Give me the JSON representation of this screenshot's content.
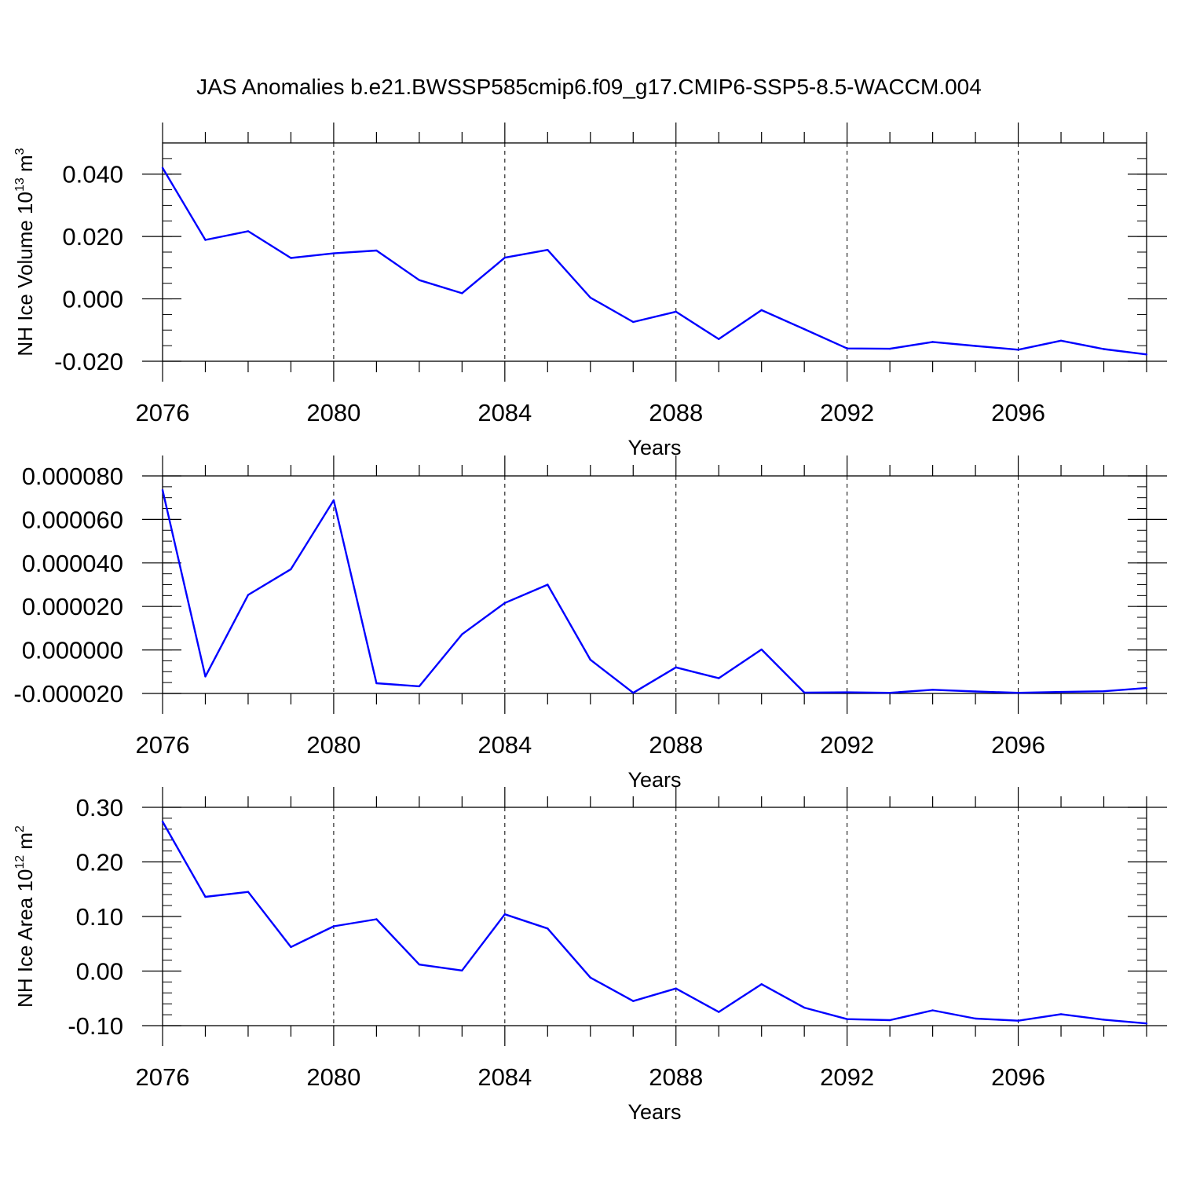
{
  "figure": {
    "title": "JAS Anomalies b.e21.BWSSP585cmip6.f09_g17.CMIP6-SSP5-8.5-WACCM.004"
  },
  "chart_data": [
    {
      "type": "line",
      "xlabel": "Years",
      "ylabel": {
        "text": "NH Ice Volume 10",
        "sup": "13",
        "unit": " m",
        "unit_sup": "3"
      },
      "xlim": [
        2076,
        2099
      ],
      "ylim": [
        -0.02,
        0.05
      ],
      "x_ticks": [
        "2076",
        "2080",
        "2084",
        "2088",
        "2092",
        "2096"
      ],
      "x_tick_values": [
        2076,
        2080,
        2084,
        2088,
        2092,
        2096
      ],
      "y_ticks": [
        "0.040",
        "0.020",
        "0.000",
        "-0.020"
      ],
      "y_tick_values": [
        0.04,
        0.02,
        0.0,
        -0.02
      ],
      "y_minor_step": 0.005,
      "color": "#0000ff",
      "grid": "x-dashed",
      "x": [
        2076,
        2077,
        2078,
        2079,
        2080,
        2081,
        2082,
        2083,
        2084,
        2085,
        2086,
        2087,
        2088,
        2089,
        2090,
        2091,
        2092,
        2093,
        2094,
        2095,
        2096,
        2097,
        2098,
        2099
      ],
      "values": [
        0.042,
        0.0189,
        0.0217,
        0.0131,
        0.0146,
        0.0155,
        0.006,
        0.0018,
        0.0132,
        0.0157,
        0.0004,
        -0.0074,
        -0.0041,
        -0.0129,
        -0.0036,
        -0.0097,
        -0.0159,
        -0.016,
        -0.0138,
        -0.0151,
        -0.0163,
        -0.0134,
        -0.0161,
        -0.0178
      ]
    },
    {
      "type": "line",
      "xlabel": "Years",
      "xlim": [
        2076,
        2099
      ],
      "ylim": [
        -2e-05,
        8e-05
      ],
      "x_ticks": [
        "2076",
        "2080",
        "2084",
        "2088",
        "2092",
        "2096"
      ],
      "x_tick_values": [
        2076,
        2080,
        2084,
        2088,
        2092,
        2096
      ],
      "y_ticks": [
        "0.000080",
        "0.000060",
        "0.000040",
        "0.000020",
        "0.000000",
        "-0.000020"
      ],
      "y_tick_values": [
        8e-05,
        6e-05,
        4e-05,
        2e-05,
        0.0,
        -2e-05
      ],
      "y_minor_step": 5e-06,
      "color": "#0000ff",
      "grid": "x-dashed",
      "x": [
        2076,
        2077,
        2078,
        2079,
        2080,
        2081,
        2082,
        2083,
        2084,
        2085,
        2086,
        2087,
        2088,
        2089,
        2090,
        2091,
        2092,
        2093,
        2094,
        2095,
        2096,
        2097,
        2098,
        2099
      ],
      "values": [
        7.35e-05,
        -1.22e-05,
        2.53e-05,
        3.71e-05,
        6.88e-05,
        -1.53e-05,
        -1.67e-05,
        7.2e-06,
        2.16e-05,
        3e-05,
        -4.5e-06,
        -1.97e-05,
        -8e-06,
        -1.3e-05,
        2e-07,
        -1.96e-05,
        -1.95e-05,
        -1.97e-05,
        -1.83e-05,
        -1.91e-05,
        -1.97e-05,
        -1.93e-05,
        -1.9e-05,
        -1.75e-05
      ]
    },
    {
      "type": "line",
      "xlabel": "Years",
      "ylabel": {
        "text": "NH Ice Area 10",
        "sup": "12",
        "unit": " m",
        "unit_sup": "2"
      },
      "xlim": [
        2076,
        2099
      ],
      "ylim": [
        -0.1,
        0.3
      ],
      "x_ticks": [
        "2076",
        "2080",
        "2084",
        "2088",
        "2092",
        "2096"
      ],
      "x_tick_values": [
        2076,
        2080,
        2084,
        2088,
        2092,
        2096
      ],
      "y_ticks": [
        "0.30",
        "0.20",
        "0.10",
        "0.00",
        "-0.10"
      ],
      "y_tick_values": [
        0.3,
        0.2,
        0.1,
        0.0,
        -0.1
      ],
      "y_minor_step": 0.02,
      "color": "#0000ff",
      "grid": "x-dashed",
      "x": [
        2076,
        2077,
        2078,
        2079,
        2080,
        2081,
        2082,
        2083,
        2084,
        2085,
        2086,
        2087,
        2088,
        2089,
        2090,
        2091,
        2092,
        2093,
        2094,
        2095,
        2096,
        2097,
        2098,
        2099
      ],
      "values": [
        0.274,
        0.136,
        0.145,
        0.044,
        0.082,
        0.095,
        0.012,
        0.001,
        0.104,
        0.078,
        -0.012,
        -0.055,
        -0.032,
        -0.075,
        -0.024,
        -0.067,
        -0.088,
        -0.09,
        -0.072,
        -0.087,
        -0.091,
        -0.079,
        -0.089,
        -0.096
      ]
    }
  ]
}
